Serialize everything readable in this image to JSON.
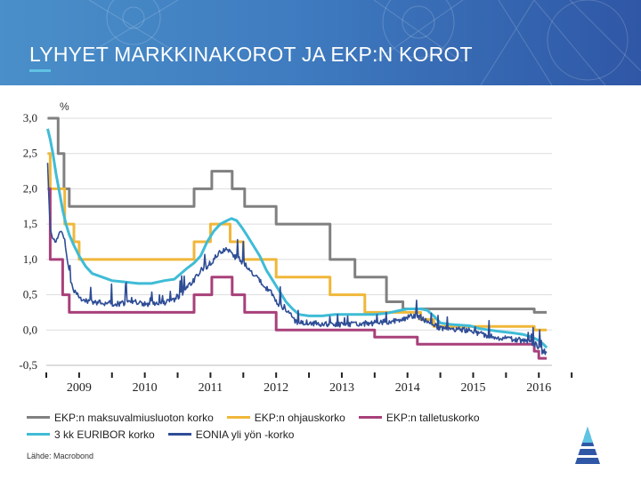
{
  "slide": {
    "title": "LYHYET MARKKINAKOROT JA EKP:N KOROT",
    "source": "Lähde: Macrobond"
  },
  "colors": {
    "header_start": "#4a8fc9",
    "header_end": "#2f57a6",
    "title_accent": "#5fc3e4"
  },
  "chart_data": {
    "type": "line",
    "title": "",
    "ylabel": "%",
    "xlabel": "",
    "ylim": [
      -0.5,
      3.0
    ],
    "xlim": [
      2008.5,
      2016.2
    ],
    "y_ticks": [
      "3,0",
      "2,5",
      "2,0",
      "1,5",
      "1,0",
      "0,5",
      "0,0",
      "-0,5"
    ],
    "y_tick_values": [
      3.0,
      2.5,
      2.0,
      1.5,
      1.0,
      0.5,
      0.0,
      -0.5
    ],
    "x_tick_labels": [
      "2009",
      "2010",
      "2011",
      "2012",
      "2013",
      "2014",
      "2015",
      "2016"
    ],
    "x_tick_values": [
      2009.0,
      2010.0,
      2011.0,
      2012.0,
      2013.0,
      2014.0,
      2015.0,
      2016.0
    ],
    "grid": true,
    "legend_position": "bottom",
    "series": [
      {
        "name": "EKP:n maksuvalmiusluoton korko",
        "color": "#808080",
        "step": true,
        "points": [
          [
            2008.52,
            3.0
          ],
          [
            2008.68,
            3.0
          ],
          [
            2008.68,
            2.5
          ],
          [
            2008.77,
            2.5
          ],
          [
            2008.77,
            2.0
          ],
          [
            2008.85,
            2.0
          ],
          [
            2008.85,
            1.75
          ],
          [
            2010.75,
            1.75
          ],
          [
            2010.75,
            2.0
          ],
          [
            2011.02,
            2.0
          ],
          [
            2011.02,
            2.25
          ],
          [
            2011.33,
            2.25
          ],
          [
            2011.33,
            2.0
          ],
          [
            2011.52,
            2.0
          ],
          [
            2011.52,
            1.75
          ],
          [
            2012.0,
            1.75
          ],
          [
            2012.0,
            1.5
          ],
          [
            2012.82,
            1.5
          ],
          [
            2012.82,
            1.0
          ],
          [
            2013.2,
            1.0
          ],
          [
            2013.2,
            0.75
          ],
          [
            2013.68,
            0.75
          ],
          [
            2013.68,
            0.4
          ],
          [
            2013.93,
            0.4
          ],
          [
            2013.93,
            0.3
          ],
          [
            2015.93,
            0.3
          ],
          [
            2015.93,
            0.25
          ],
          [
            2016.12,
            0.25
          ]
        ]
      },
      {
        "name": "EKP:n ohjauskorko",
        "color": "#f0b739",
        "step": true,
        "points": [
          [
            2008.52,
            2.5
          ],
          [
            2008.56,
            2.5
          ],
          [
            2008.56,
            2.0
          ],
          [
            2008.78,
            2.0
          ],
          [
            2008.78,
            1.5
          ],
          [
            2008.92,
            1.5
          ],
          [
            2008.92,
            1.25
          ],
          [
            2009.0,
            1.25
          ],
          [
            2009.0,
            1.0
          ],
          [
            2010.75,
            1.0
          ],
          [
            2010.75,
            1.25
          ],
          [
            2011.0,
            1.25
          ],
          [
            2011.0,
            1.5
          ],
          [
            2011.3,
            1.5
          ],
          [
            2011.3,
            1.25
          ],
          [
            2011.5,
            1.25
          ],
          [
            2011.5,
            1.0
          ],
          [
            2012.0,
            1.0
          ],
          [
            2012.0,
            0.75
          ],
          [
            2012.82,
            0.75
          ],
          [
            2012.82,
            0.5
          ],
          [
            2013.35,
            0.5
          ],
          [
            2013.35,
            0.25
          ],
          [
            2014.2,
            0.25
          ],
          [
            2014.2,
            0.15
          ],
          [
            2014.4,
            0.15
          ],
          [
            2014.4,
            0.05
          ],
          [
            2015.93,
            0.05
          ],
          [
            2015.93,
            0.0
          ],
          [
            2016.12,
            0.0
          ]
        ]
      },
      {
        "name": "EKP:n talletuskorko",
        "color": "#a8407a",
        "step": true,
        "points": [
          [
            2008.52,
            2.0
          ],
          [
            2008.56,
            2.0
          ],
          [
            2008.56,
            1.0
          ],
          [
            2008.75,
            1.0
          ],
          [
            2008.75,
            0.5
          ],
          [
            2008.85,
            0.5
          ],
          [
            2008.85,
            0.25
          ],
          [
            2010.75,
            0.25
          ],
          [
            2010.75,
            0.5
          ],
          [
            2011.02,
            0.5
          ],
          [
            2011.02,
            0.75
          ],
          [
            2011.33,
            0.75
          ],
          [
            2011.33,
            0.5
          ],
          [
            2011.52,
            0.5
          ],
          [
            2011.52,
            0.25
          ],
          [
            2012.0,
            0.25
          ],
          [
            2012.0,
            0.0
          ],
          [
            2013.5,
            0.0
          ],
          [
            2013.5,
            -0.1
          ],
          [
            2014.15,
            -0.1
          ],
          [
            2014.15,
            -0.2
          ],
          [
            2015.93,
            -0.2
          ],
          [
            2015.93,
            -0.3
          ],
          [
            2016.0,
            -0.3
          ],
          [
            2016.0,
            -0.4
          ],
          [
            2016.12,
            -0.4
          ]
        ]
      },
      {
        "name": "3 kk EURIBOR korko",
        "color": "#3fbcd6",
        "step": false,
        "points": [
          [
            2008.52,
            2.85
          ],
          [
            2008.56,
            2.7
          ],
          [
            2008.6,
            2.5
          ],
          [
            2008.65,
            2.2
          ],
          [
            2008.7,
            1.95
          ],
          [
            2008.75,
            1.7
          ],
          [
            2008.8,
            1.5
          ],
          [
            2008.85,
            1.35
          ],
          [
            2008.92,
            1.2
          ],
          [
            2009.0,
            1.05
          ],
          [
            2009.1,
            0.9
          ],
          [
            2009.2,
            0.8
          ],
          [
            2009.35,
            0.75
          ],
          [
            2009.5,
            0.7
          ],
          [
            2009.7,
            0.68
          ],
          [
            2009.9,
            0.66
          ],
          [
            2010.1,
            0.66
          ],
          [
            2010.3,
            0.7
          ],
          [
            2010.45,
            0.72
          ],
          [
            2010.55,
            0.8
          ],
          [
            2010.65,
            0.88
          ],
          [
            2010.75,
            0.95
          ],
          [
            2010.85,
            1.05
          ],
          [
            2010.95,
            1.25
          ],
          [
            2011.05,
            1.4
          ],
          [
            2011.15,
            1.5
          ],
          [
            2011.25,
            1.55
          ],
          [
            2011.32,
            1.58
          ],
          [
            2011.4,
            1.55
          ],
          [
            2011.48,
            1.45
          ],
          [
            2011.55,
            1.35
          ],
          [
            2011.65,
            1.2
          ],
          [
            2011.75,
            1.05
          ],
          [
            2011.85,
            0.85
          ],
          [
            2011.95,
            0.7
          ],
          [
            2012.05,
            0.55
          ],
          [
            2012.15,
            0.4
          ],
          [
            2012.25,
            0.3
          ],
          [
            2012.35,
            0.22
          ],
          [
            2012.5,
            0.2
          ],
          [
            2012.7,
            0.2
          ],
          [
            2012.9,
            0.22
          ],
          [
            2013.1,
            0.22
          ],
          [
            2013.3,
            0.22
          ],
          [
            2013.5,
            0.22
          ],
          [
            2013.7,
            0.24
          ],
          [
            2013.9,
            0.28
          ],
          [
            2014.0,
            0.3
          ],
          [
            2014.1,
            0.3
          ],
          [
            2014.2,
            0.3
          ],
          [
            2014.3,
            0.28
          ],
          [
            2014.4,
            0.2
          ],
          [
            2014.5,
            0.1
          ],
          [
            2014.65,
            0.08
          ],
          [
            2014.8,
            0.07
          ],
          [
            2014.95,
            0.06
          ],
          [
            2015.1,
            0.02
          ],
          [
            2015.25,
            0.0
          ],
          [
            2015.4,
            -0.02
          ],
          [
            2015.6,
            -0.04
          ],
          [
            2015.75,
            -0.06
          ],
          [
            2015.9,
            -0.1
          ],
          [
            2016.0,
            -0.15
          ],
          [
            2016.07,
            -0.2
          ],
          [
            2016.12,
            -0.25
          ]
        ]
      },
      {
        "name": "EONIA yli yön -korko",
        "color": "#2e4d96",
        "step": false,
        "noisy": true,
        "points": [
          [
            2008.52,
            2.4
          ],
          [
            2008.55,
            1.6
          ],
          [
            2008.58,
            1.3
          ],
          [
            2008.62,
            1.25
          ],
          [
            2008.66,
            1.3
          ],
          [
            2008.7,
            1.35
          ],
          [
            2008.74,
            1.4
          ],
          [
            2008.78,
            1.3
          ],
          [
            2008.82,
            1.0
          ],
          [
            2008.86,
            0.75
          ],
          [
            2008.9,
            0.6
          ],
          [
            2009.0,
            0.45
          ],
          [
            2009.2,
            0.4
          ],
          [
            2009.4,
            0.38
          ],
          [
            2009.6,
            0.37
          ],
          [
            2009.8,
            0.4
          ],
          [
            2010.0,
            0.37
          ],
          [
            2010.2,
            0.38
          ],
          [
            2010.4,
            0.4
          ],
          [
            2010.55,
            0.5
          ],
          [
            2010.65,
            0.6
          ],
          [
            2010.75,
            0.7
          ],
          [
            2010.85,
            0.85
          ],
          [
            2010.95,
            0.9
          ],
          [
            2011.05,
            1.0
          ],
          [
            2011.15,
            1.1
          ],
          [
            2011.25,
            1.15
          ],
          [
            2011.35,
            1.05
          ],
          [
            2011.45,
            1.0
          ],
          [
            2011.55,
            0.9
          ],
          [
            2011.65,
            0.8
          ],
          [
            2011.75,
            0.7
          ],
          [
            2011.85,
            0.6
          ],
          [
            2011.95,
            0.5
          ],
          [
            2012.05,
            0.35
          ],
          [
            2012.15,
            0.3
          ],
          [
            2012.3,
            0.12
          ],
          [
            2012.5,
            0.1
          ],
          [
            2012.7,
            0.09
          ],
          [
            2012.9,
            0.08
          ],
          [
            2013.1,
            0.08
          ],
          [
            2013.3,
            0.09
          ],
          [
            2013.5,
            0.1
          ],
          [
            2013.7,
            0.12
          ],
          [
            2013.9,
            0.15
          ],
          [
            2014.0,
            0.18
          ],
          [
            2014.1,
            0.2
          ],
          [
            2014.2,
            0.18
          ],
          [
            2014.35,
            0.1
          ],
          [
            2014.5,
            0.02
          ],
          [
            2014.7,
            0.01
          ],
          [
            2014.9,
            0.0
          ],
          [
            2015.1,
            -0.05
          ],
          [
            2015.3,
            -0.1
          ],
          [
            2015.5,
            -0.12
          ],
          [
            2015.7,
            -0.14
          ],
          [
            2015.85,
            -0.18
          ],
          [
            2015.95,
            -0.2
          ],
          [
            2016.0,
            -0.25
          ],
          [
            2016.05,
            -0.3
          ],
          [
            2016.12,
            -0.32
          ]
        ]
      }
    ]
  }
}
